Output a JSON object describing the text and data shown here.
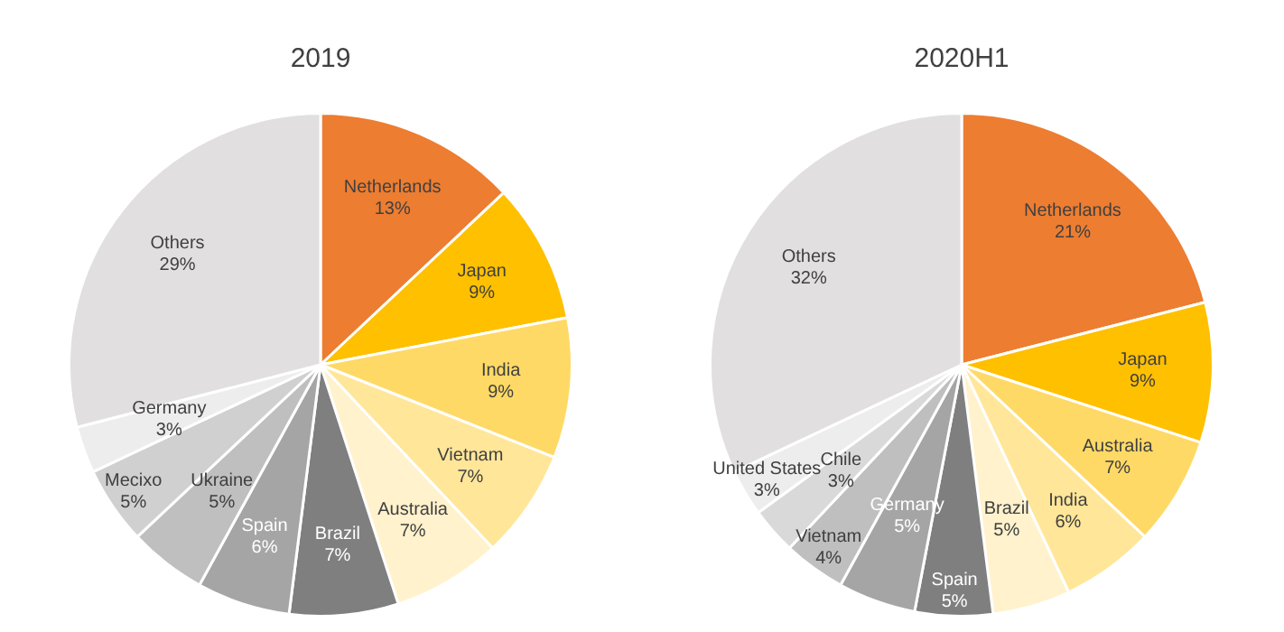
{
  "chart_data": [
    {
      "type": "pie",
      "title": "2019",
      "categories": [
        "Netherlands",
        "Japan",
        "India",
        "Vietnam",
        "Australia",
        "Brazil",
        "Spain",
        "Ukraine",
        "Mecixo",
        "Germany",
        "Others"
      ],
      "values": [
        13,
        9,
        9,
        7,
        7,
        7,
        6,
        5,
        5,
        3,
        29
      ],
      "value_labels": [
        "13%",
        "9%",
        "9%",
        "7%",
        "7%",
        "7%",
        "6%",
        "5%",
        "5%",
        "3%",
        "29%"
      ],
      "colors": [
        "#ed7d31",
        "#ffc000",
        "#ffd966",
        "#ffe699",
        "#fff2cc",
        "#7f7f7f",
        "#a5a5a5",
        "#bfbfbf",
        "#d0d0d0",
        "#ededed",
        "#e1dfdf"
      ],
      "legend": false
    },
    {
      "type": "pie",
      "title": "2020H1",
      "categories": [
        "Netherlands",
        "Japan",
        "Australia",
        "India",
        "Brazil",
        "Spain",
        "Germany",
        "Vietnam",
        "Chile",
        "United States",
        "Others"
      ],
      "values": [
        21,
        9,
        7,
        6,
        5,
        5,
        5,
        4,
        3,
        3,
        32
      ],
      "value_labels": [
        "21%",
        "9%",
        "7%",
        "6%",
        "5%",
        "5%",
        "5%",
        "4%",
        "3%",
        "3%",
        "32%"
      ],
      "colors": [
        "#ed7d31",
        "#ffc000",
        "#ffd966",
        "#ffe699",
        "#fff2cc",
        "#7f7f7f",
        "#a5a5a5",
        "#bfbfbf",
        "#d9d9d9",
        "#ededed",
        "#e1dfdf"
      ],
      "legend": false
    }
  ]
}
